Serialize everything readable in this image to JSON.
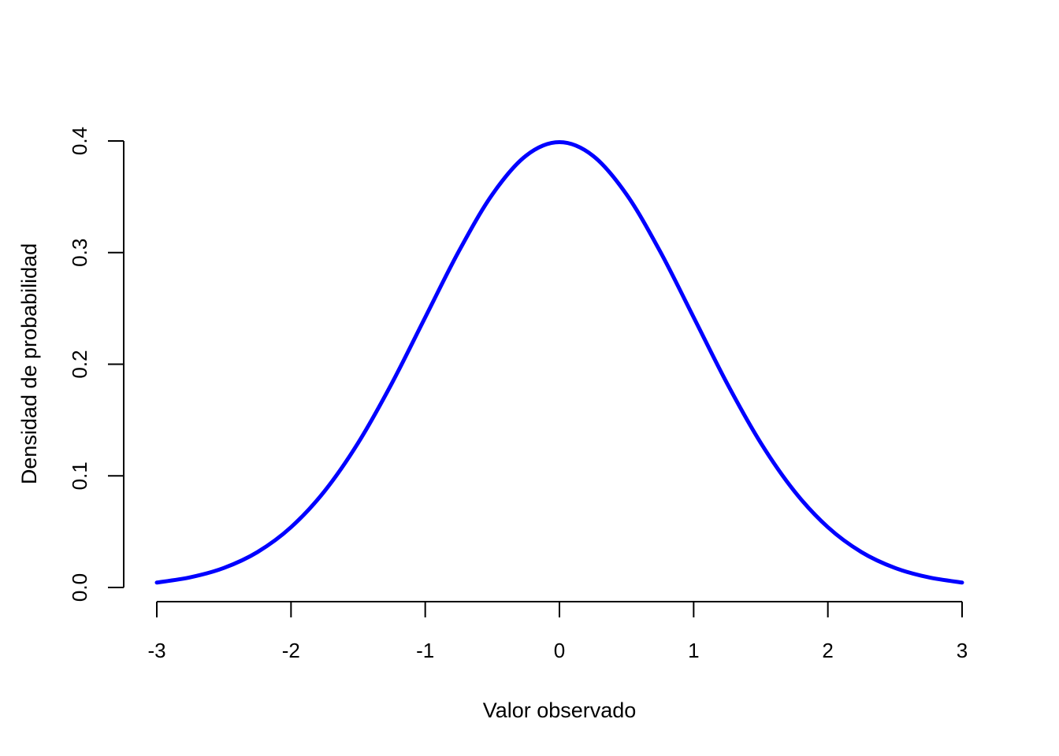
{
  "chart_data": {
    "type": "line",
    "title": "",
    "xlabel": "Valor observado",
    "ylabel": "Densidad de probabilidad",
    "xlim": [
      -3,
      3
    ],
    "ylim": [
      0,
      0.4
    ],
    "x_ticks": [
      -3,
      -2,
      -1,
      0,
      1,
      2,
      3
    ],
    "x_tick_labels": [
      "-3",
      "-2",
      "-1",
      "0",
      "1",
      "2",
      "3"
    ],
    "y_ticks": [
      0,
      0.1,
      0.2,
      0.3,
      0.4
    ],
    "y_tick_labels": [
      "0.0",
      "0.1",
      "0.2",
      "0.3",
      "0.4"
    ],
    "grid": false,
    "series": [
      {
        "color": "#0000ff",
        "x": [
          -3.0,
          -2.75,
          -2.5,
          -2.25,
          -2.0,
          -1.75,
          -1.5,
          -1.25,
          -1.0,
          -0.75,
          -0.5,
          -0.25,
          0.0,
          0.25,
          0.5,
          0.75,
          1.0,
          1.25,
          1.5,
          1.75,
          2.0,
          2.25,
          2.5,
          2.75,
          3.0
        ],
        "y": [
          0.0044,
          0.0091,
          0.0175,
          0.0317,
          0.054,
          0.0863,
          0.1295,
          0.1826,
          0.242,
          0.3011,
          0.3521,
          0.3867,
          0.3989,
          0.3867,
          0.3521,
          0.3011,
          0.242,
          0.1826,
          0.1295,
          0.0863,
          0.054,
          0.0317,
          0.0175,
          0.0091,
          0.0044
        ]
      }
    ]
  }
}
